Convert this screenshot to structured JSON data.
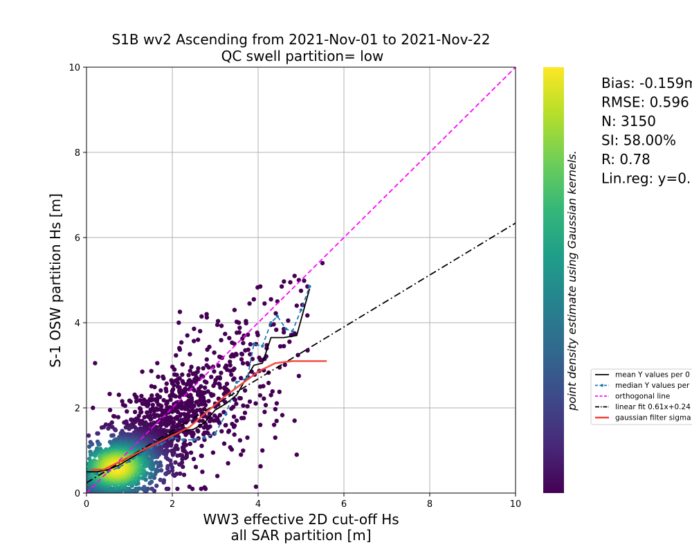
{
  "chart_data": {
    "type": "scatter",
    "title": [
      "S1B wv2 Ascending from 2021-Nov-01 to 2021-Nov-22",
      "QC swell partition= low"
    ],
    "xlabel": [
      "WW3 effective 2D cut-off Hs",
      "all SAR partition [m]"
    ],
    "ylabel": "S-1 OSW partition Hs [m]",
    "xlim": [
      0,
      10
    ],
    "ylim": [
      0,
      10
    ],
    "xticks": [
      "0",
      "2",
      "4",
      "6",
      "8",
      "10"
    ],
    "yticks": [
      "0",
      "2",
      "4",
      "6",
      "8",
      "10"
    ],
    "grid": true,
    "colorbar": {
      "label": "point density estimate using Gaussian kernels.",
      "colormap": "viridis",
      "colors": [
        "#440154",
        "#482878",
        "#3e4989",
        "#31688e",
        "#26828e",
        "#1f9e89",
        "#35b779",
        "#6ece58",
        "#b5de2b",
        "#fde725"
      ]
    },
    "stats": [
      "Bias: -0.159m",
      "RMSE: 0.596",
      "N: 3150",
      "SI: 58.00%",
      "R: 0.78",
      "Lin.reg: y=0."
    ],
    "n_points": 3150,
    "scatter_sample": [
      [
        0.2,
        3.05
      ],
      [
        0.15,
        2.0
      ],
      [
        0.55,
        1.95
      ],
      [
        1.3,
        2.85
      ],
      [
        1.65,
        3.05
      ],
      [
        2.15,
        4.0
      ],
      [
        2.35,
        3.7
      ],
      [
        2.8,
        4.2
      ],
      [
        3.05,
        3.95
      ],
      [
        3.45,
        4.3
      ],
      [
        3.55,
        4.0
      ],
      [
        3.8,
        4.45
      ],
      [
        3.9,
        4.55
      ],
      [
        4.05,
        4.85
      ],
      [
        4.15,
        4.45
      ],
      [
        4.3,
        4.55
      ],
      [
        4.45,
        4.5
      ],
      [
        4.55,
        4.85
      ],
      [
        4.75,
        4.95
      ],
      [
        4.85,
        5.1
      ],
      [
        4.95,
        5.0
      ],
      [
        5.15,
        4.85
      ],
      [
        5.5,
        5.4
      ],
      [
        5.0,
        4.75
      ],
      [
        4.9,
        4.4
      ],
      [
        4.7,
        4.05
      ],
      [
        4.85,
        3.75
      ],
      [
        4.6,
        3.85
      ],
      [
        4.3,
        3.95
      ],
      [
        4.2,
        3.4
      ],
      [
        3.95,
        3.5
      ],
      [
        3.7,
        3.35
      ],
      [
        3.35,
        3.0
      ],
      [
        3.1,
        3.2
      ],
      [
        2.85,
        2.95
      ],
      [
        2.6,
        3.6
      ],
      [
        2.55,
        2.6
      ],
      [
        2.3,
        2.45
      ],
      [
        2.05,
        2.9
      ],
      [
        1.85,
        2.45
      ],
      [
        1.65,
        2.3
      ],
      [
        1.4,
        2.15
      ],
      [
        1.15,
        2.25
      ],
      [
        0.9,
        2.05
      ],
      [
        0.65,
        1.8
      ],
      [
        0.4,
        1.55
      ],
      [
        0.25,
        1.4
      ],
      [
        0.05,
        1.35
      ],
      [
        0.1,
        0.9
      ],
      [
        0.3,
        0.15
      ],
      [
        0.6,
        0.1
      ],
      [
        0.9,
        0.2
      ],
      [
        1.2,
        0.3
      ],
      [
        1.5,
        0.45
      ],
      [
        1.8,
        0.25
      ],
      [
        2.1,
        0.45
      ],
      [
        2.4,
        0.15
      ],
      [
        2.7,
        0.5
      ],
      [
        3.05,
        0.4
      ],
      [
        3.3,
        0.7
      ],
      [
        3.6,
        0.9
      ],
      [
        3.95,
        0.15
      ],
      [
        4.1,
        1.0
      ],
      [
        4.4,
        1.3
      ],
      [
        4.9,
        0.9
      ],
      [
        4.85,
        1.7
      ],
      [
        4.95,
        2.75
      ],
      [
        4.3,
        2.3
      ],
      [
        4.05,
        1.6
      ],
      [
        3.75,
        1.3
      ],
      [
        3.5,
        1.7
      ],
      [
        3.15,
        1.45
      ],
      [
        2.95,
        0.95
      ],
      [
        2.75,
        1.25
      ],
      [
        2.5,
        0.8
      ],
      [
        2.25,
        1.0
      ],
      [
        2.0,
        0.6
      ],
      [
        3.3,
        2.4
      ],
      [
        3.6,
        2.7
      ],
      [
        3.85,
        2.85
      ],
      [
        4.05,
        2.5
      ],
      [
        3.45,
        2.2
      ],
      [
        3.2,
        1.9
      ],
      [
        2.9,
        1.75
      ],
      [
        2.65,
        1.95
      ],
      [
        2.45,
        2.2
      ],
      [
        2.2,
        1.85
      ],
      [
        1.95,
        1.7
      ],
      [
        1.75,
        1.95
      ],
      [
        1.5,
        1.6
      ],
      [
        1.3,
        1.35
      ],
      [
        1.05,
        1.55
      ],
      [
        0.8,
        1.4
      ],
      [
        0.55,
        1.2
      ],
      [
        1.45,
        0.8
      ],
      [
        1.7,
        1.05
      ],
      [
        1.95,
        1.2
      ],
      [
        2.3,
        1.5
      ],
      [
        2.6,
        1.45
      ],
      [
        3.0,
        2.1
      ],
      [
        3.4,
        3.25
      ],
      [
        3.75,
        3.05
      ],
      [
        4.15,
        3.15
      ],
      [
        4.5,
        2.95
      ],
      [
        4.6,
        3.45
      ]
    ],
    "series": [
      {
        "name": "mean Y values per 0",
        "color": "#000000",
        "x": [
          0.0,
          0.25,
          0.5,
          0.75,
          1.0,
          1.25,
          1.5,
          1.75,
          2.0,
          2.25,
          2.5,
          2.75,
          3.0,
          3.25,
          3.5,
          3.75,
          3.9,
          4.1,
          4.3,
          4.6,
          4.9,
          5.2
        ],
        "y": [
          0.5,
          0.5,
          0.55,
          0.65,
          0.8,
          0.95,
          1.1,
          1.25,
          1.4,
          1.45,
          1.5,
          1.65,
          1.95,
          2.1,
          2.3,
          2.75,
          3.0,
          3.05,
          3.65,
          3.65,
          3.7,
          4.8
        ]
      },
      {
        "name": "median Y values per",
        "color": "#1f77b4",
        "x": [
          0.0,
          0.25,
          0.5,
          0.75,
          1.0,
          1.25,
          1.5,
          1.75,
          2.0,
          2.25,
          2.5,
          2.75,
          3.0,
          3.25,
          3.5,
          3.75,
          3.9,
          4.1,
          4.3,
          4.45,
          4.65,
          4.8,
          5.0,
          5.2
        ],
        "y": [
          0.45,
          0.45,
          0.5,
          0.6,
          0.75,
          0.9,
          1.05,
          1.15,
          1.3,
          1.25,
          1.25,
          1.3,
          1.4,
          1.85,
          2.6,
          2.7,
          3.5,
          3.45,
          4.0,
          4.15,
          3.85,
          3.8,
          4.3,
          4.85
        ]
      },
      {
        "name": "orthogonal line",
        "color": "#ff00ff",
        "x": [
          0,
          10
        ],
        "y": [
          0,
          10
        ]
      },
      {
        "name": "linear fit 0.61x+0.24",
        "color": "#000000",
        "x": [
          0,
          10
        ],
        "y": [
          0.24,
          6.34
        ]
      },
      {
        "name": "gaussian filter sigma",
        "color": "#f44336",
        "x": [
          0.1,
          0.4,
          0.8,
          1.2,
          1.6,
          2.0,
          2.4,
          2.8,
          3.2,
          3.6,
          4.0,
          4.4,
          4.8,
          5.2,
          5.6
        ],
        "y": [
          0.55,
          0.55,
          0.75,
          0.95,
          1.15,
          1.35,
          1.55,
          1.9,
          2.25,
          2.55,
          2.85,
          3.05,
          3.1,
          3.1,
          3.1
        ]
      }
    ],
    "legend": {
      "placement": "right of colorbar",
      "entries": [
        "mean Y values per 0",
        "median Y values per",
        "orthogonal line",
        "linear fit 0.61x+0.24",
        "gaussian filter sigma"
      ]
    }
  }
}
